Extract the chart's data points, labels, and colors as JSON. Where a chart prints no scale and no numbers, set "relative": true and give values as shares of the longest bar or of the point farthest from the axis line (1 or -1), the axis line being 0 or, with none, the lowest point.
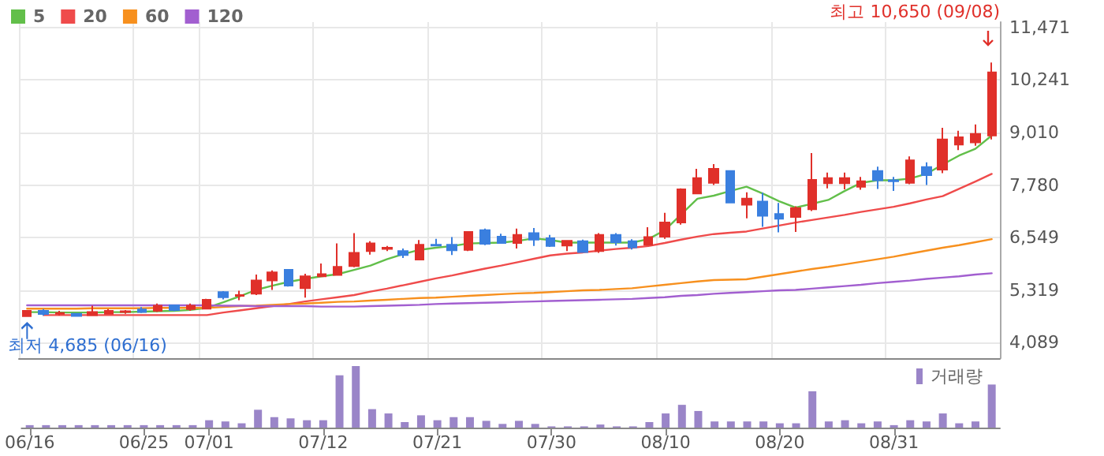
{
  "chart_data": [
    {
      "type": "candlestick",
      "legend": "top left",
      "marker": "none",
      "line_style": "solid",
      "grid": true,
      "tick_labels": "y",
      "categories": [
        "06/16",
        null,
        null,
        null,
        null,
        null,
        null,
        "06/25",
        null,
        null,
        null,
        "07/01",
        null,
        null,
        null,
        null,
        null,
        null,
        "07/12",
        null,
        null,
        null,
        null,
        null,
        null,
        "07/21",
        null,
        null,
        null,
        null,
        null,
        null,
        "07/30",
        null,
        null,
        null,
        null,
        null,
        null,
        "08/10",
        null,
        null,
        null,
        null,
        null,
        null,
        "08/20",
        null,
        null,
        null,
        null,
        null,
        null,
        "08/31",
        null,
        null,
        null,
        null,
        null,
        null
      ],
      "ylim": [
        3720,
        11600
      ],
      "yticks": [
        {
          "value": 4089,
          "label": "4,089"
        },
        {
          "value": 5319,
          "label": "5,319"
        },
        {
          "value": 6549,
          "label": "6,549"
        },
        {
          "value": 7780,
          "label": "7,780"
        },
        {
          "value": 9010,
          "label": "9,010"
        },
        {
          "value": 10241,
          "label": "10,241"
        },
        {
          "value": 11471,
          "label": "11,471"
        }
      ],
      "ohlc": [
        [
          4707,
          4830,
          4685,
          4830
        ],
        [
          4830,
          4870,
          4720,
          4755
        ],
        [
          4760,
          4830,
          4720,
          4780
        ],
        [
          4760,
          4780,
          4690,
          4710
        ],
        [
          4730,
          4950,
          4710,
          4800
        ],
        [
          4760,
          4870,
          4740,
          4830
        ],
        [
          4800,
          4850,
          4760,
          4820
        ],
        [
          4860,
          4920,
          4780,
          4800
        ],
        [
          4830,
          5000,
          4800,
          4950
        ],
        [
          4960,
          4980,
          4820,
          4850
        ],
        [
          4870,
          5000,
          4830,
          4950
        ],
        [
          4880,
          5110,
          4860,
          5090
        ],
        [
          5270,
          5290,
          5100,
          5150
        ],
        [
          5180,
          5300,
          5080,
          5200
        ],
        [
          5230,
          5680,
          5200,
          5540
        ],
        [
          5540,
          5780,
          5320,
          5730
        ],
        [
          5790,
          5800,
          5400,
          5420
        ],
        [
          5360,
          5700,
          5140,
          5640
        ],
        [
          5640,
          5940,
          5640,
          5690
        ],
        [
          5670,
          6410,
          5660,
          5860
        ],
        [
          5880,
          6650,
          5850,
          6190
        ],
        [
          6230,
          6460,
          6150,
          6410
        ],
        [
          6280,
          6350,
          6230,
          6310
        ],
        [
          6230,
          6290,
          6070,
          6140
        ],
        [
          6030,
          6490,
          6030,
          6380
        ],
        [
          6380,
          6520,
          6340,
          6360
        ],
        [
          6380,
          6560,
          6140,
          6250
        ],
        [
          6260,
          6700,
          6230,
          6680
        ],
        [
          6720,
          6760,
          6370,
          6400
        ],
        [
          6570,
          6640,
          6400,
          6420
        ],
        [
          6420,
          6760,
          6290,
          6610
        ],
        [
          6650,
          6770,
          6350,
          6500
        ],
        [
          6530,
          6610,
          6330,
          6350
        ],
        [
          6360,
          6480,
          6230,
          6470
        ],
        [
          6460,
          6500,
          6200,
          6210
        ],
        [
          6230,
          6650,
          6190,
          6610
        ],
        [
          6610,
          6650,
          6360,
          6440
        ],
        [
          6460,
          6510,
          6270,
          6320
        ],
        [
          6380,
          6790,
          6360,
          6560
        ],
        [
          6570,
          7130,
          6520,
          6900
        ],
        [
          6900,
          7700,
          6850,
          7680
        ],
        [
          7580,
          8160,
          7580,
          7940
        ],
        [
          7830,
          8270,
          7780,
          8160
        ],
        [
          8110,
          8110,
          7370,
          7370
        ],
        [
          7320,
          7610,
          7000,
          7460
        ],
        [
          7390,
          7600,
          6800,
          7060
        ],
        [
          7100,
          7360,
          6670,
          6990
        ],
        [
          7030,
          7280,
          6680,
          7240
        ],
        [
          7210,
          8530,
          7170,
          7900
        ],
        [
          7820,
          8070,
          7700,
          7940
        ],
        [
          7820,
          8070,
          7680,
          7940
        ],
        [
          7740,
          7970,
          7670,
          7870
        ],
        [
          8110,
          8210,
          7690,
          7890
        ],
        [
          7890,
          7970,
          7640,
          7870
        ],
        [
          7830,
          8450,
          7800,
          8360
        ],
        [
          8200,
          8310,
          7780,
          8010
        ],
        [
          8140,
          9120,
          8060,
          8850
        ],
        [
          8730,
          9050,
          8600,
          8900
        ],
        [
          8780,
          9200,
          8700,
          8980
        ],
        [
          8940,
          10650,
          8850,
          10420
        ]
      ],
      "colors": [
        "#e0302a",
        "#3a7fdf",
        "#e0302a",
        "#3a7fdf",
        "#e0302a",
        "#e0302a",
        "#e0302a",
        "#3a7fdf",
        "#e0302a",
        "#3a7fdf",
        "#e0302a",
        "#e0302a",
        "#3a7fdf",
        "#e0302a",
        "#e0302a",
        "#e0302a",
        "#3a7fdf",
        "#e0302a",
        "#e0302a",
        "#e0302a",
        "#e0302a",
        "#e0302a",
        "#e0302a",
        "#3a7fdf",
        "#e0302a",
        "#3a7fdf",
        "#3a7fdf",
        "#e0302a",
        "#3a7fdf",
        "#3a7fdf",
        "#e0302a",
        "#3a7fdf",
        "#3a7fdf",
        "#e0302a",
        "#3a7fdf",
        "#e0302a",
        "#3a7fdf",
        "#3a7fdf",
        "#e0302a",
        "#e0302a",
        "#e0302a",
        "#e0302a",
        "#e0302a",
        "#3a7fdf",
        "#e0302a",
        "#3a7fdf",
        "#3a7fdf",
        "#e0302a",
        "#e0302a",
        "#e0302a",
        "#e0302a",
        "#e0302a",
        "#3a7fdf",
        "#3a7fdf",
        "#e0302a",
        "#3a7fdf",
        "#e0302a",
        "#e0302a",
        "#e0302a",
        "#e0302a"
      ],
      "series": [
        {
          "name": "5",
          "type": "line",
          "color": "#62bf4a",
          "values": [
            4800,
            4800,
            4790,
            4790,
            4790,
            4800,
            4800,
            4810,
            4820,
            4830,
            4850,
            4900,
            5030,
            5170,
            5320,
            5420,
            5510,
            5580,
            5640,
            5690,
            5790,
            5890,
            6040,
            6160,
            6260,
            6310,
            6350,
            6410,
            6420,
            6430,
            6470,
            6530,
            6490,
            6430,
            6430,
            6430,
            6430,
            6430,
            6510,
            6720,
            7090,
            7460,
            7530,
            7640,
            7740,
            7580,
            7400,
            7250,
            7340,
            7430,
            7640,
            7830,
            7890,
            7890,
            7930,
            8040,
            8260,
            8470,
            8630,
            8940
          ]
        },
        {
          "name": "20",
          "type": "line",
          "color": "#ef4b4b",
          "values": [
            null,
            4730,
            4730,
            4730,
            4730,
            4730,
            4730,
            4730,
            4730,
            4730,
            4730,
            4730,
            4790,
            4840,
            4890,
            4940,
            4990,
            5050,
            5100,
            5150,
            5200,
            5280,
            5350,
            5430,
            5510,
            5590,
            5660,
            5740,
            5820,
            5890,
            5970,
            6050,
            6130,
            6170,
            6200,
            6240,
            6280,
            6310,
            6350,
            6420,
            6500,
            6570,
            6630,
            6660,
            6690,
            6760,
            6830,
            6900,
            6960,
            7020,
            7080,
            7150,
            7210,
            7270,
            7350,
            7440,
            7520,
            7690,
            7860,
            8040
          ]
        },
        {
          "name": "60",
          "type": "line",
          "color": "#f7901e",
          "values": [
            4880,
            4880,
            4880,
            4880,
            4890,
            4890,
            4890,
            4890,
            4900,
            4900,
            4900,
            4900,
            4920,
            4940,
            4950,
            4970,
            4990,
            5000,
            5020,
            5040,
            5050,
            5070,
            5090,
            5110,
            5130,
            5140,
            5160,
            5180,
            5200,
            5220,
            5240,
            5250,
            5270,
            5290,
            5310,
            5320,
            5340,
            5360,
            5400,
            5440,
            5480,
            5520,
            5550,
            5560,
            5570,
            5630,
            5690,
            5750,
            5810,
            5860,
            5920,
            5980,
            6040,
            6100,
            6170,
            6240,
            6310,
            6370,
            6440,
            6510
          ]
        },
        {
          "name": "120",
          "type": "line",
          "color": "#a25fd0",
          "values": [
            4960,
            4960,
            4960,
            4960,
            4960,
            4960,
            4960,
            4960,
            4960,
            4960,
            4960,
            4960,
            4950,
            4950,
            4940,
            4940,
            4940,
            4940,
            4930,
            4930,
            4930,
            4940,
            4950,
            4960,
            4970,
            4990,
            5000,
            5010,
            5020,
            5030,
            5040,
            5050,
            5060,
            5070,
            5080,
            5090,
            5100,
            5110,
            5130,
            5150,
            5180,
            5200,
            5230,
            5250,
            5270,
            5290,
            5310,
            5320,
            5350,
            5380,
            5410,
            5440,
            5480,
            5510,
            5540,
            5580,
            5610,
            5640,
            5680,
            5710
          ]
        }
      ],
      "annotations": [
        "최고 10,650 (09/08)",
        {
          "text": "최저 4,685 (06/16)",
          "x": "06/16",
          "y": 4685
        }
      ]
    },
    {
      "type": "bar",
      "relative": true,
      "legend": "top right",
      "tick_labels": "x",
      "categories": [
        "06/16",
        null,
        null,
        null,
        null,
        null,
        null,
        "06/25",
        null,
        null,
        null,
        "07/01",
        null,
        null,
        null,
        null,
        null,
        null,
        "07/12",
        null,
        null,
        null,
        null,
        null,
        null,
        "07/21",
        null,
        null,
        null,
        null,
        null,
        null,
        "07/30",
        null,
        null,
        null,
        null,
        null,
        null,
        "08/10",
        null,
        null,
        null,
        null,
        null,
        null,
        "08/20",
        null,
        null,
        null,
        null,
        null,
        null,
        "08/31",
        null,
        null,
        null,
        null,
        null,
        null
      ],
      "series": [
        {
          "name": "거래량",
          "color": "#9a85c8",
          "values": [
            0.04,
            0.04,
            0.04,
            0.04,
            0.04,
            0.04,
            0.04,
            0.04,
            0.04,
            0.04,
            0.04,
            0.12,
            0.1,
            0.07,
            0.29,
            0.17,
            0.15,
            0.12,
            0.12,
            0.85,
            1,
            0.3,
            0.23,
            0.09,
            0.2,
            0.12,
            0.17,
            0.17,
            0.11,
            0.06,
            0.11,
            0.06,
            0.02,
            0.02,
            0.02,
            0.05,
            0.02,
            0.02,
            0.09,
            0.23,
            0.37,
            0.27,
            0.1,
            0.1,
            0.1,
            0.1,
            0.07,
            0.07,
            0.59,
            0.1,
            0.12,
            0.07,
            0.1,
            0.04,
            0.12,
            0.1,
            0.23,
            0.07,
            0.1,
            0.7
          ]
        }
      ]
    }
  ]
}
